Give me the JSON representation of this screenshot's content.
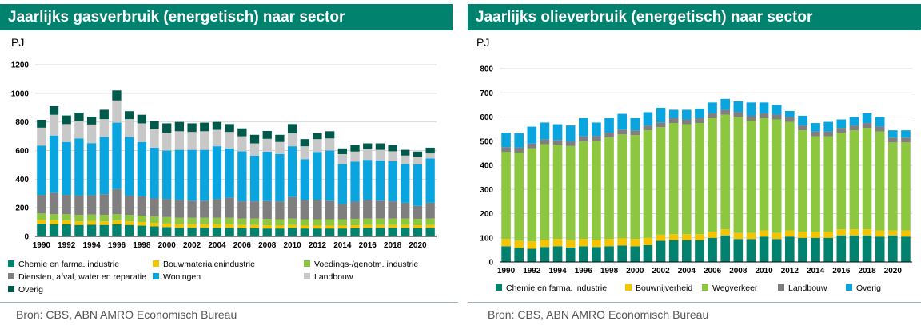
{
  "left": {
    "title": "Jaarlijks gasverbruik (energetisch) naar sector",
    "unit": "PJ",
    "source": "Bron: CBS, ABN AMRO Economisch Bureau"
  },
  "right": {
    "title": "Jaarlijks olieverbruik (energetisch) naar sector",
    "unit": "PJ",
    "source": "Bron: CBS, ABN AMRO Economisch Bureau"
  },
  "chart_data": [
    {
      "type": "bar",
      "stacked": true,
      "title": "Jaarlijks gasverbruik (energetisch) naar sector",
      "ylabel": "PJ",
      "ylim": [
        0,
        1200
      ],
      "yticks": [
        0,
        200,
        400,
        600,
        800,
        1000,
        1200
      ],
      "grid": true,
      "legend_position": "bottom",
      "categories": [
        "1990",
        "1991",
        "1992",
        "1993",
        "1994",
        "1995",
        "1996",
        "1997",
        "1998",
        "1999",
        "2000",
        "2001",
        "2002",
        "2003",
        "2004",
        "2005",
        "2006",
        "2007",
        "2008",
        "2009",
        "2010",
        "2011",
        "2012",
        "2013",
        "2014",
        "2015",
        "2016",
        "2017",
        "2018",
        "2019",
        "2020",
        "2021"
      ],
      "xtick_labels": [
        "1990",
        "1992",
        "1994",
        "1996",
        "1998",
        "2000",
        "2002",
        "2004",
        "2006",
        "2008",
        "2010",
        "2012",
        "2014",
        "2016",
        "2018",
        "2020"
      ],
      "series": [
        {
          "name": "Chemie en farma. industrie",
          "color": "#00826e",
          "values": [
            90,
            85,
            85,
            80,
            82,
            80,
            85,
            80,
            75,
            70,
            65,
            60,
            60,
            60,
            60,
            60,
            58,
            58,
            55,
            55,
            60,
            55,
            55,
            55,
            55,
            58,
            60,
            60,
            60,
            60,
            58,
            60
          ]
        },
        {
          "name": "Bouwmaterialenindustrie",
          "color": "#f5c400",
          "values": [
            25,
            25,
            25,
            25,
            25,
            25,
            25,
            25,
            25,
            25,
            25,
            25,
            25,
            25,
            25,
            25,
            22,
            22,
            22,
            20,
            20,
            20,
            20,
            20,
            20,
            20,
            20,
            20,
            20,
            20,
            20,
            20
          ]
        },
        {
          "name": "Voedings-/genotm. industrie",
          "color": "#8dc63f",
          "values": [
            45,
            45,
            45,
            45,
            45,
            45,
            45,
            45,
            45,
            45,
            45,
            45,
            45,
            45,
            45,
            45,
            45,
            45,
            45,
            45,
            45,
            45,
            45,
            45,
            45,
            45,
            45,
            45,
            45,
            45,
            45,
            45
          ]
        },
        {
          "name": "Diensten, afval, water en reparatie",
          "color": "#7f7f7f",
          "values": [
            130,
            150,
            135,
            135,
            135,
            145,
            175,
            135,
            135,
            125,
            125,
            125,
            120,
            120,
            130,
            140,
            120,
            120,
            125,
            125,
            150,
            135,
            135,
            130,
            105,
            120,
            130,
            125,
            120,
            110,
            90,
            110
          ]
        },
        {
          "name": "Woningen",
          "color": "#0aa4df",
          "values": [
            345,
            400,
            370,
            400,
            365,
            400,
            465,
            410,
            380,
            355,
            340,
            350,
            355,
            355,
            370,
            345,
            350,
            320,
            345,
            330,
            355,
            285,
            335,
            350,
            280,
            280,
            280,
            280,
            280,
            270,
            290,
            310
          ]
        },
        {
          "name": "Landbouw",
          "color": "#c8c8c8",
          "values": [
            125,
            145,
            125,
            120,
            130,
            125,
            155,
            125,
            130,
            130,
            125,
            130,
            125,
            130,
            115,
            115,
            105,
            85,
            90,
            85,
            90,
            90,
            90,
            85,
            70,
            70,
            75,
            75,
            70,
            60,
            55,
            35
          ]
        },
        {
          "name": "Overig",
          "color": "#005a4b",
          "values": [
            55,
            60,
            60,
            60,
            55,
            65,
            70,
            55,
            60,
            55,
            65,
            65,
            60,
            60,
            55,
            55,
            55,
            60,
            55,
            50,
            65,
            50,
            40,
            50,
            40,
            45,
            40,
            45,
            45,
            40,
            35,
            40
          ]
        }
      ]
    },
    {
      "type": "bar",
      "stacked": true,
      "title": "Jaarlijks olieverbruik (energetisch) naar sector",
      "ylabel": "PJ",
      "ylim": [
        0,
        800
      ],
      "yticks": [
        0,
        100,
        200,
        300,
        400,
        500,
        600,
        700,
        800
      ],
      "grid": true,
      "legend_position": "bottom",
      "categories": [
        "1990",
        "1991",
        "1992",
        "1993",
        "1994",
        "1995",
        "1996",
        "1997",
        "1998",
        "1999",
        "2000",
        "2001",
        "2002",
        "2003",
        "2004",
        "2005",
        "2006",
        "2007",
        "2008",
        "2009",
        "2010",
        "2011",
        "2012",
        "2013",
        "2014",
        "2015",
        "2016",
        "2017",
        "2018",
        "2019",
        "2020",
        "2021"
      ],
      "xtick_labels": [
        "1990",
        "1992",
        "1994",
        "1996",
        "1998",
        "2000",
        "2002",
        "2004",
        "2006",
        "2008",
        "2010",
        "2012",
        "2014",
        "2016",
        "2018",
        "2020"
      ],
      "series": [
        {
          "name": "Chemie en farma. industrie",
          "color": "#00826e",
          "values": [
            65,
            58,
            55,
            62,
            65,
            60,
            65,
            62,
            65,
            68,
            65,
            70,
            88,
            90,
            90,
            90,
            100,
            110,
            95,
            95,
            105,
            95,
            105,
            100,
            100,
            100,
            110,
            110,
            110,
            105,
            110,
            105
          ]
        },
        {
          "name": "Bouwnijverheid",
          "color": "#f5c400",
          "values": [
            30,
            30,
            30,
            30,
            30,
            30,
            30,
            30,
            30,
            30,
            30,
            30,
            25,
            25,
            25,
            25,
            25,
            25,
            25,
            25,
            25,
            25,
            25,
            25,
            25,
            25,
            25,
            25,
            25,
            25,
            20,
            25
          ]
        },
        {
          "name": "Wegverkeer",
          "color": "#8dc63f",
          "values": [
            360,
            365,
            385,
            395,
            390,
            390,
            405,
            410,
            420,
            430,
            430,
            445,
            445,
            460,
            455,
            460,
            470,
            475,
            480,
            465,
            465,
            470,
            450,
            420,
            395,
            395,
            400,
            410,
            420,
            410,
            365,
            365
          ]
        },
        {
          "name": "Landbouw",
          "color": "#7f7f7f",
          "values": [
            20,
            20,
            20,
            20,
            20,
            20,
            20,
            20,
            20,
            20,
            20,
            20,
            20,
            20,
            20,
            20,
            20,
            20,
            20,
            20,
            20,
            20,
            20,
            20,
            20,
            20,
            20,
            20,
            20,
            20,
            20,
            20
          ]
        },
        {
          "name": "Overig",
          "color": "#0aa4df",
          "values": [
            60,
            60,
            70,
            70,
            65,
            65,
            75,
            55,
            60,
            65,
            50,
            55,
            60,
            35,
            40,
            40,
            45,
            45,
            45,
            55,
            45,
            40,
            25,
            40,
            35,
            40,
            35,
            35,
            40,
            40,
            30,
            30
          ]
        }
      ]
    }
  ]
}
